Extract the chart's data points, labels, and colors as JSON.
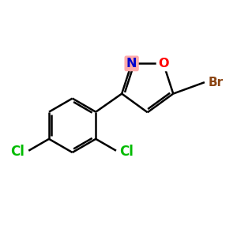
{
  "background_color": "#ffffff",
  "atom_colors": {
    "C": "#000000",
    "N": "#0000cd",
    "O": "#ff0000",
    "Cl": "#00bb00",
    "Br": "#8B4513"
  },
  "bond_color": "#000000",
  "bond_width": 1.8,
  "figsize": [
    3.0,
    3.0
  ],
  "dpi": 100,
  "highlight_N": "#ffaaaa",
  "highlight_C3": "#ffaaaa"
}
